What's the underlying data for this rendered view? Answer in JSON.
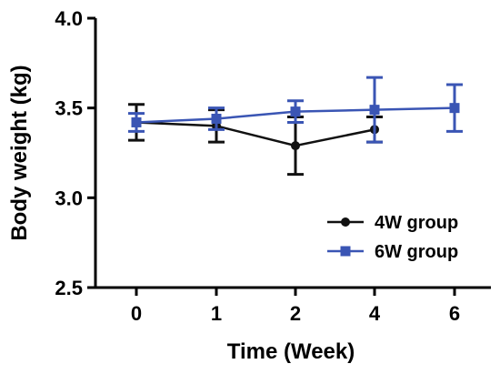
{
  "chart_data": {
    "type": "line",
    "xlabel": "Time (Week)",
    "ylabel": "Body weight (kg)",
    "categories": [
      "0",
      "1",
      "2",
      "4",
      "6"
    ],
    "ylim": [
      2.5,
      4.0
    ],
    "yticks": [
      "2.5",
      "3.0",
      "3.5",
      "4.0"
    ],
    "grid": false,
    "legend_position": "bottom-right",
    "series": [
      {
        "name": "4W group",
        "color": "#111111",
        "marker": "circle",
        "points": [
          {
            "x": "0",
            "y": 3.42,
            "err": 0.1
          },
          {
            "x": "1",
            "y": 3.4,
            "err": 0.09
          },
          {
            "x": "2",
            "y": 3.29,
            "err": 0.16
          },
          {
            "x": "4",
            "y": 3.38,
            "err": 0.07
          }
        ]
      },
      {
        "name": "6W group",
        "color": "#3a55b4",
        "marker": "square",
        "points": [
          {
            "x": "0",
            "y": 3.42,
            "err": 0.05
          },
          {
            "x": "1",
            "y": 3.44,
            "err": 0.06
          },
          {
            "x": "2",
            "y": 3.48,
            "err": 0.06
          },
          {
            "x": "4",
            "y": 3.49,
            "err": 0.18
          },
          {
            "x": "6",
            "y": 3.5,
            "err": 0.13
          }
        ]
      }
    ]
  }
}
